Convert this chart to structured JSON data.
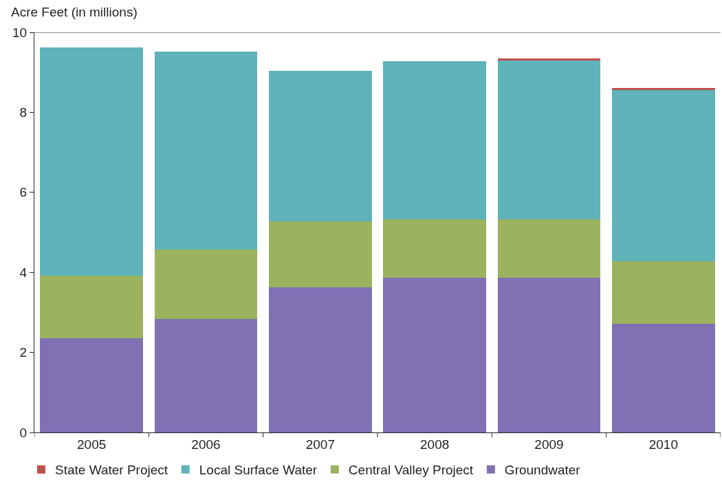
{
  "chart_data": {
    "type": "bar",
    "stacked": true,
    "ylabel": "Acre Feet (in millions)",
    "categories": [
      "2005",
      "2006",
      "2007",
      "2008",
      "2009",
      "2010"
    ],
    "series": [
      {
        "name": "Groundwater",
        "color": "#8071b4",
        "values": [
          2.36,
          2.83,
          3.63,
          3.87,
          3.87,
          2.72
        ]
      },
      {
        "name": "Central Valley Project",
        "color": "#9bb25e",
        "values": [
          1.56,
          1.74,
          1.64,
          1.46,
          1.46,
          1.56
        ]
      },
      {
        "name": "Local Surface Water",
        "color": "#5fb3b9",
        "values": [
          5.7,
          4.95,
          3.77,
          3.95,
          3.97,
          4.28
        ]
      },
      {
        "name": "State Water Project",
        "color": "#c0504d",
        "values": [
          0,
          0,
          0,
          0,
          0.05,
          0.04
        ]
      }
    ],
    "ylim": [
      0,
      10
    ],
    "yticks": [
      0,
      2,
      4,
      6,
      8,
      10
    ],
    "legend": "bottom"
  }
}
